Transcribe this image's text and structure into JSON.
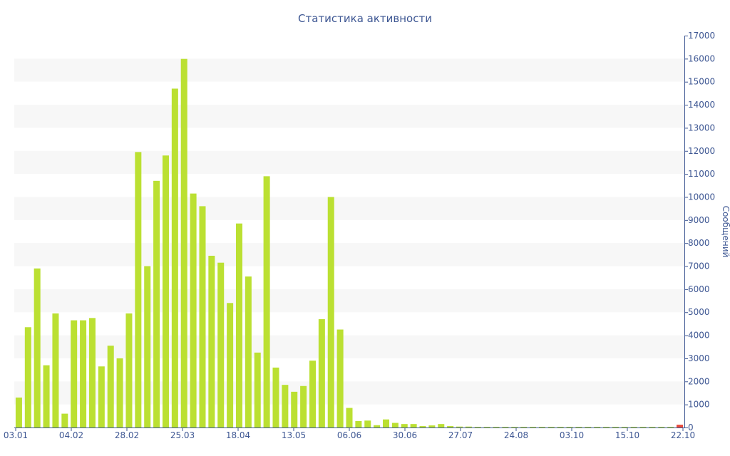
{
  "chart_data": {
    "type": "bar",
    "title": "Статистика активности",
    "xlabel": "",
    "ylabel": "Сообщений",
    "ylim": [
      0,
      17000
    ],
    "yticks": [
      0,
      1000,
      2000,
      3000,
      4000,
      5000,
      6000,
      7000,
      8000,
      9000,
      10000,
      11000,
      12000,
      13000,
      14000,
      15000,
      16000,
      17000
    ],
    "x_tick_labels": [
      "03.01",
      "04.02",
      "28.02",
      "25.03",
      "18.04",
      "13.05",
      "06.06",
      "30.06",
      "27.07",
      "24.08",
      "03.10",
      "15.10",
      "22.10"
    ],
    "grid": "alternating horizontal bands",
    "y_axis_side": "right",
    "colors": {
      "bar": "#bbe032",
      "bar_highlight": "#e84a3c",
      "text": "#3e5793",
      "band": "#f7f7f7",
      "axis": "#3e5793"
    },
    "values": [
      1300,
      4350,
      6900,
      2700,
      4950,
      600,
      4650,
      4650,
      4750,
      2650,
      3550,
      3000,
      4950,
      11950,
      7000,
      10700,
      11800,
      14700,
      15990,
      10150,
      9600,
      7450,
      7150,
      5400,
      8850,
      6550,
      3250,
      10900,
      2600,
      1850,
      1550,
      1800,
      2900,
      4700,
      10000,
      4250,
      850,
      280,
      300,
      100,
      350,
      200,
      150,
      150,
      60,
      90,
      150,
      60,
      40,
      40,
      30,
      30,
      30,
      30,
      30,
      30,
      30,
      30,
      30,
      30,
      30,
      30,
      30,
      30,
      30,
      30,
      30,
      30,
      30,
      30,
      30,
      30,
      120
    ],
    "highlight_index": 72
  }
}
